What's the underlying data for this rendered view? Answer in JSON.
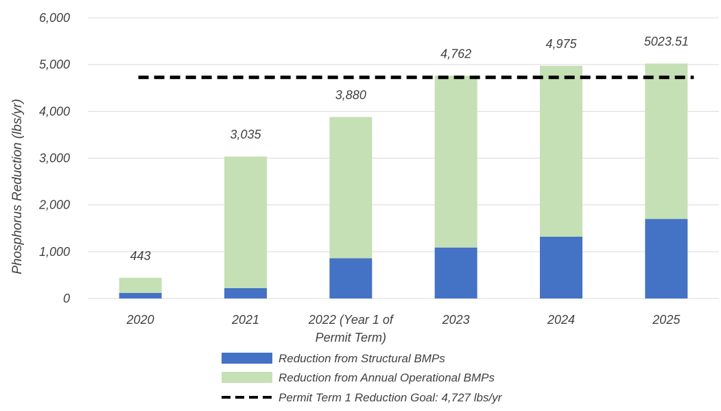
{
  "chart_data": {
    "type": "bar",
    "stacked": true,
    "categories": [
      [
        "2020"
      ],
      [
        "2021"
      ],
      [
        "2022 (Year 1 of",
        "Permit Term)"
      ],
      [
        "2023"
      ],
      [
        "2024"
      ],
      [
        "2025"
      ]
    ],
    "series": [
      {
        "name": "Reduction from Structural BMPs",
        "color": "#4472c4",
        "values": [
          120,
          220,
          860,
          1090,
          1320,
          1700
        ]
      },
      {
        "name": "Reduction from Annual Operational BMPs",
        "color": "#c5e0b4",
        "values": [
          323,
          2815,
          3020,
          3672,
          3655,
          3323.51
        ]
      }
    ],
    "totals": [
      "443",
      "3,035",
      "3,880",
      "4,762",
      "4,975",
      "5023.51"
    ],
    "reference_line": {
      "name": "Permit Term 1 Reduction Goal: 4,727 lbs/yr",
      "value": 4727,
      "color": "#000000",
      "style": "dashed"
    },
    "ylabel": "Phosphorus Reduction (lbs/yr)",
    "ylim": [
      0,
      6000
    ],
    "yticks": [
      0,
      1000,
      2000,
      3000,
      4000,
      5000,
      6000
    ],
    "ytick_labels": [
      "0",
      "1,000",
      "2,000",
      "3,000",
      "4,000",
      "5,000",
      "6,000"
    ],
    "grid": true,
    "gridline_color": "#d9d9d9",
    "legend_position": "bottom"
  }
}
